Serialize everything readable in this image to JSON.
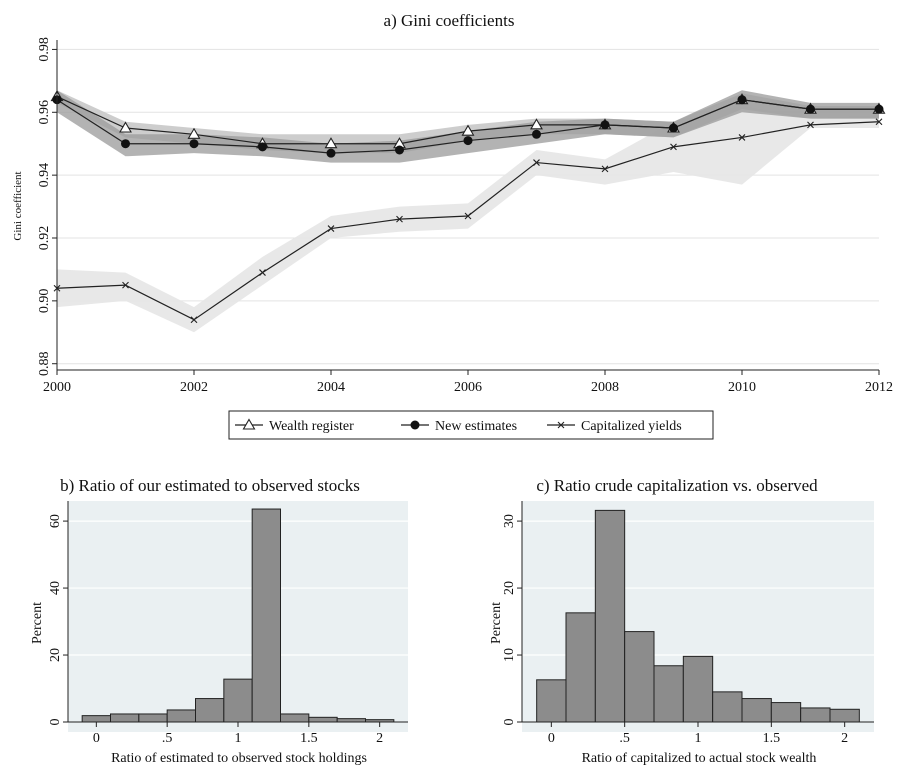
{
  "chart_data": [
    {
      "type": "line",
      "title": "a) Gini coefficients",
      "xlabel": "",
      "ylabel": "Gini coefficient",
      "xlim": [
        2000,
        2012
      ],
      "ylim": [
        0.878,
        0.983
      ],
      "x": [
        2000,
        2001,
        2002,
        2003,
        2004,
        2005,
        2006,
        2007,
        2008,
        2009,
        2010,
        2011,
        2012
      ],
      "x_ticks": [
        "2000",
        "2002",
        "2004",
        "2006",
        "2008",
        "2010",
        "2012"
      ],
      "x_tick_values": [
        2000,
        2002,
        2004,
        2006,
        2008,
        2010,
        2012
      ],
      "y_ticks": [
        "0.88",
        "0.90",
        "0.92",
        "0.94",
        "0.96",
        "0.98"
      ],
      "y_tick_values": [
        0.88,
        0.9,
        0.92,
        0.94,
        0.96,
        0.98
      ],
      "series": [
        {
          "name": "Wealth register",
          "marker": "triangle",
          "values": [
            0.965,
            0.955,
            0.953,
            0.95,
            0.95,
            0.95,
            0.954,
            0.956,
            0.956,
            0.955,
            0.964,
            0.961,
            0.961
          ],
          "band_lo": [
            0.963,
            0.952,
            0.95,
            0.948,
            0.947,
            0.947,
            0.951,
            0.953,
            0.953,
            0.952,
            0.961,
            0.958,
            0.958
          ],
          "band_hi": [
            0.967,
            0.957,
            0.955,
            0.953,
            0.953,
            0.953,
            0.956,
            0.958,
            0.958,
            0.957,
            0.966,
            0.962,
            0.962
          ]
        },
        {
          "name": "New estimates",
          "marker": "circle",
          "values": [
            0.964,
            0.95,
            0.95,
            0.949,
            0.947,
            0.948,
            0.951,
            0.953,
            0.956,
            0.955,
            0.964,
            0.961,
            0.961
          ],
          "band_lo": [
            0.96,
            0.946,
            0.947,
            0.946,
            0.944,
            0.944,
            0.947,
            0.95,
            0.953,
            0.952,
            0.96,
            0.958,
            0.958
          ],
          "band_hi": [
            0.967,
            0.953,
            0.953,
            0.952,
            0.95,
            0.951,
            0.954,
            0.957,
            0.958,
            0.957,
            0.967,
            0.963,
            0.963
          ]
        },
        {
          "name": "Capitalized yields",
          "marker": "x",
          "values": [
            0.904,
            0.905,
            0.894,
            0.909,
            0.923,
            0.926,
            0.927,
            0.944,
            0.942,
            0.949,
            0.952,
            0.956,
            0.957
          ],
          "band_lo": [
            0.898,
            0.9,
            0.89,
            0.905,
            0.92,
            0.922,
            0.923,
            0.94,
            0.937,
            0.941,
            0.937,
            0.955,
            0.955
          ],
          "band_hi": [
            0.91,
            0.909,
            0.898,
            0.914,
            0.927,
            0.93,
            0.931,
            0.948,
            0.945,
            0.957,
            0.962,
            0.958,
            0.959
          ]
        }
      ],
      "legend": "bottom",
      "grid": true,
      "band_colors": {
        "register": "#c8c8c8",
        "new": "#9a9a9a",
        "yields": "#e6e6e6"
      }
    },
    {
      "type": "bar",
      "title": "b) Ratio of our estimated to observed stocks",
      "xlabel": "Ratio of estimated to observed stock holdings",
      "ylabel": "Percent",
      "xlim": [
        -0.2,
        2.2
      ],
      "ylim": [
        0,
        66
      ],
      "bin_width": 0.2,
      "bin_starts": [
        -0.1,
        0.1,
        0.3,
        0.5,
        0.7,
        0.9,
        1.1,
        1.3,
        1.5,
        1.7,
        1.9
      ],
      "values": [
        1.9,
        2.4,
        2.4,
        3.6,
        7.0,
        12.8,
        63.6,
        2.4,
        1.4,
        1.0,
        0.7
      ],
      "x_ticks": [
        "0",
        ".5",
        "1",
        "1.5",
        "2"
      ],
      "x_tick_values": [
        0,
        0.5,
        1,
        1.5,
        2
      ],
      "y_ticks": [
        "0",
        "20",
        "40",
        "60"
      ],
      "y_tick_values": [
        0,
        20,
        40,
        60
      ],
      "grid": true,
      "bar_color": "#8c8c8c"
    },
    {
      "type": "bar",
      "title": "c) Ratio crude capitalization vs. observed",
      "xlabel": "Ratio of capitalized to actual stock wealth",
      "ylabel": "Percent",
      "xlim": [
        -0.2,
        2.2
      ],
      "ylim": [
        0,
        33
      ],
      "bin_width": 0.2,
      "bin_starts": [
        -0.1,
        0.1,
        0.3,
        0.5,
        0.7,
        0.9,
        1.1,
        1.3,
        1.5,
        1.7,
        1.9
      ],
      "values": [
        6.3,
        16.3,
        31.6,
        13.5,
        8.4,
        9.8,
        4.5,
        3.5,
        2.9,
        2.1,
        1.9
      ],
      "x_ticks": [
        "0",
        ".5",
        "1",
        "1.5",
        "2"
      ],
      "x_tick_values": [
        0,
        0.5,
        1,
        1.5,
        2
      ],
      "y_ticks": [
        "0",
        "10",
        "20",
        "30"
      ],
      "y_tick_values": [
        0,
        10,
        20,
        30
      ],
      "grid": true,
      "bar_color": "#8c8c8c"
    }
  ]
}
